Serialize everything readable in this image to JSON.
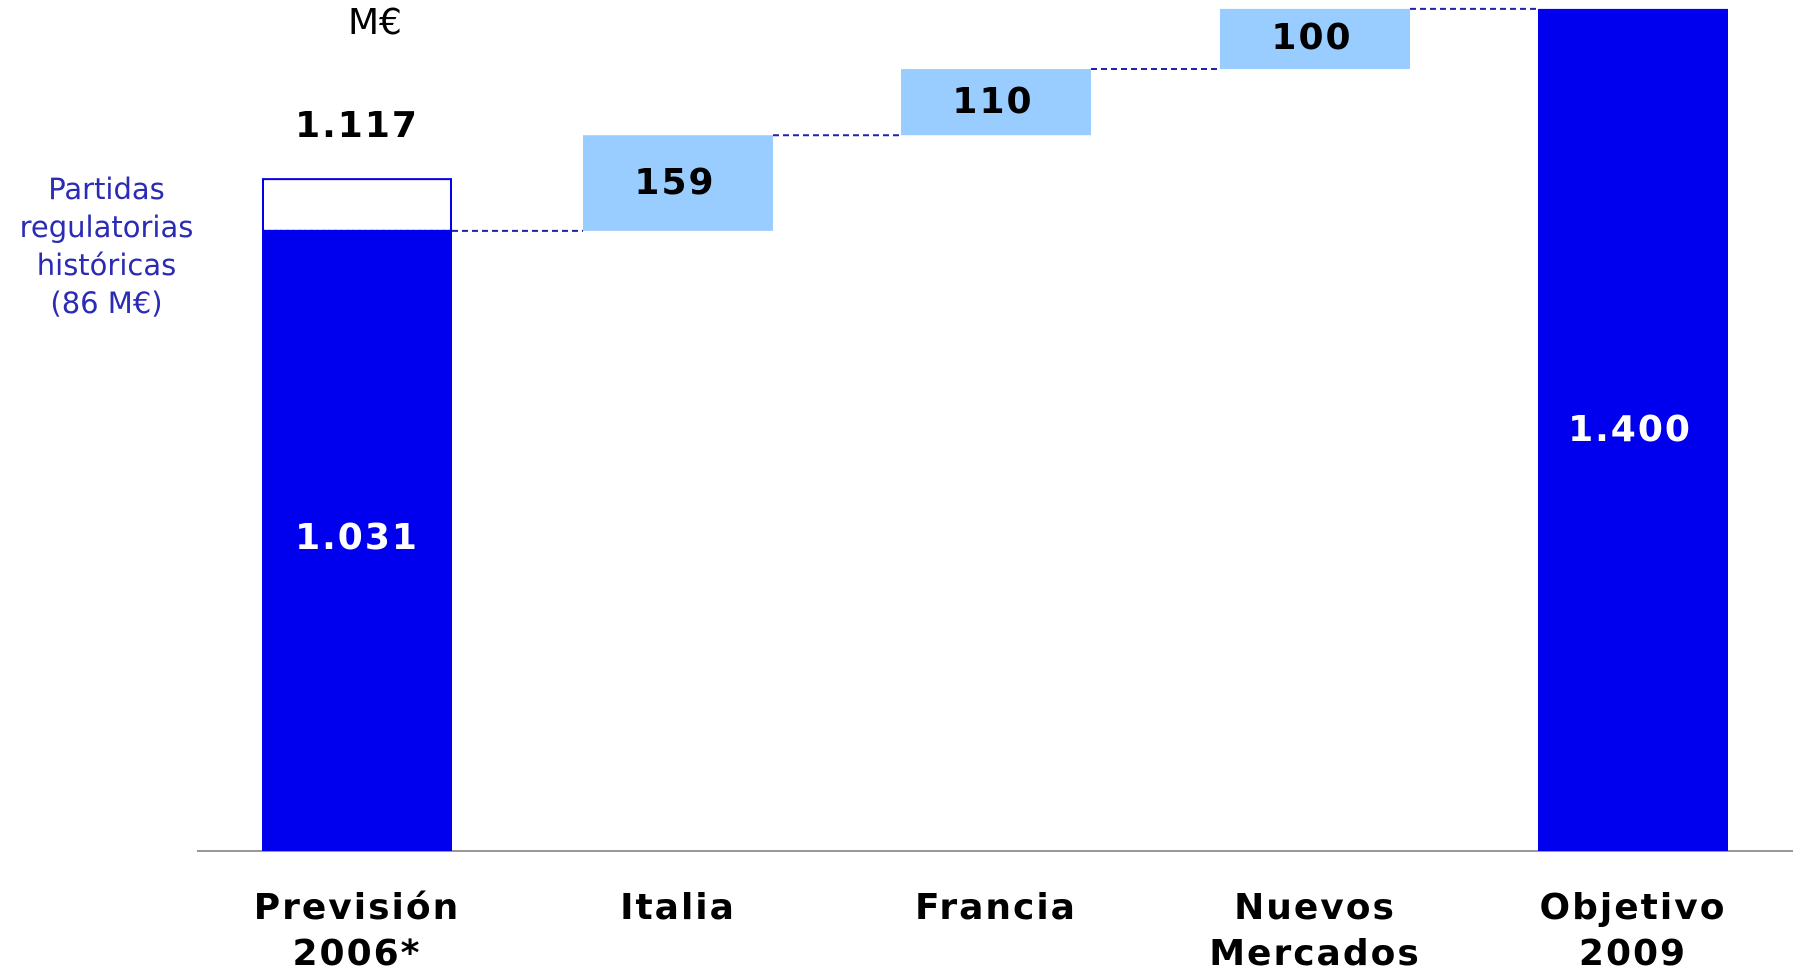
{
  "unit_label": "M€",
  "annotation": {
    "lines": [
      "Partidas",
      "regulatorias",
      "históricas",
      "(86 M€)"
    ]
  },
  "colors": {
    "total_bar": "#0000ee",
    "increment_bar": "#99ccff",
    "connector": "#2222aa",
    "baseline": "#999999",
    "annotation_text": "#2b2bb5"
  },
  "chart_data": {
    "type": "bar",
    "subtype": "waterfall",
    "title": "",
    "unit": "M€",
    "categories": [
      "Previsión\n2006*",
      "Italia",
      "Francia",
      "Nuevos\nMercados",
      "Objetivo\n2009"
    ],
    "steps": [
      {
        "category": "Previsión\n2006*",
        "kind": "total",
        "value": 1117,
        "base": 1031,
        "highlight": 86,
        "labels": {
          "inside": "1.031",
          "top": "1.117"
        }
      },
      {
        "category": "Italia",
        "kind": "increase",
        "value": 159,
        "start": 1031,
        "end": 1190,
        "label": "159"
      },
      {
        "category": "Francia",
        "kind": "increase",
        "value": 110,
        "start": 1190,
        "end": 1300,
        "label": "110"
      },
      {
        "category": "Nuevos\nMercados",
        "kind": "increase",
        "value": 100,
        "start": 1300,
        "end": 1400,
        "label": "100"
      },
      {
        "category": "Objetivo\n2009",
        "kind": "total",
        "value": 1400,
        "label": "1.400"
      }
    ],
    "axis_visible": false,
    "grid": false,
    "legend": "none"
  }
}
